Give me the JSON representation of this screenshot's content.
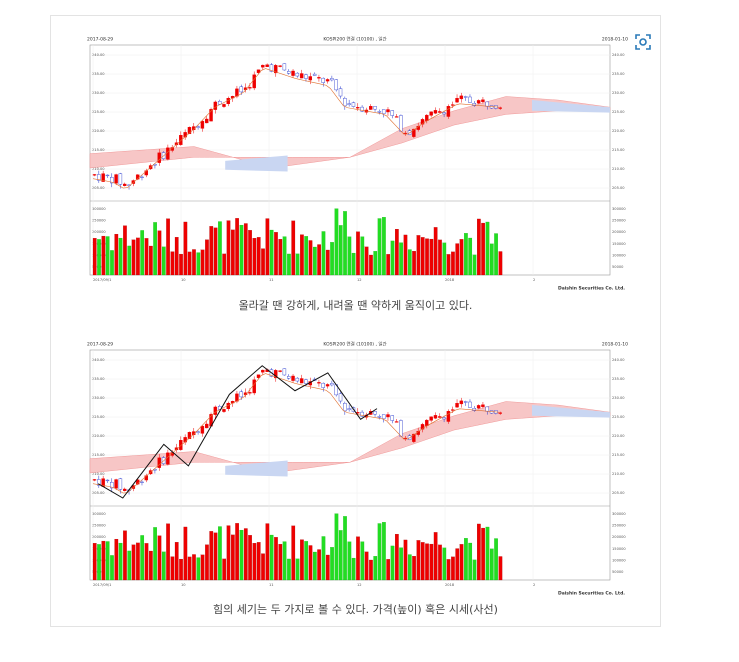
{
  "figures": [
    {
      "date_start": "2017-08-29",
      "title": "KOSPI200 연결 (10100) , 일간",
      "date_end": "2018-01-10",
      "y_labels": [
        "240.00",
        "235.00",
        "230.00",
        "225.00",
        "220.00",
        "215.00",
        "210.00",
        "205.00"
      ],
      "volume_labels": [
        "300000",
        "250000",
        "200000",
        "150000",
        "100000",
        "50000"
      ],
      "x_labels": [
        "2017/09/1",
        "10",
        "11",
        "12",
        "2018",
        "2"
      ],
      "source": "Daishin Securities Co. Ltd.",
      "caption": "올라갈 땐 강하게, 내려올 땐 약하게 움직이고 있다."
    },
    {
      "date_start": "2017-08-29",
      "title": "KOSPI200 연결 (10100) , 일간",
      "date_end": "2018-01-10",
      "y_labels": [
        "240.00",
        "235.00",
        "230.00",
        "225.00",
        "220.00",
        "215.00",
        "210.00",
        "205.00"
      ],
      "volume_labels": [
        "300000",
        "250000",
        "200000",
        "150000",
        "100000",
        "50000"
      ],
      "x_labels": [
        "2017/09/1",
        "10",
        "11",
        "12",
        "2018",
        "2"
      ],
      "source": "Daishin Securities Co. Ltd.",
      "caption": "힘의 세기는 두 가지로 볼 수 있다. 가격(높이) 혹은 시세(사선)"
    }
  ]
}
